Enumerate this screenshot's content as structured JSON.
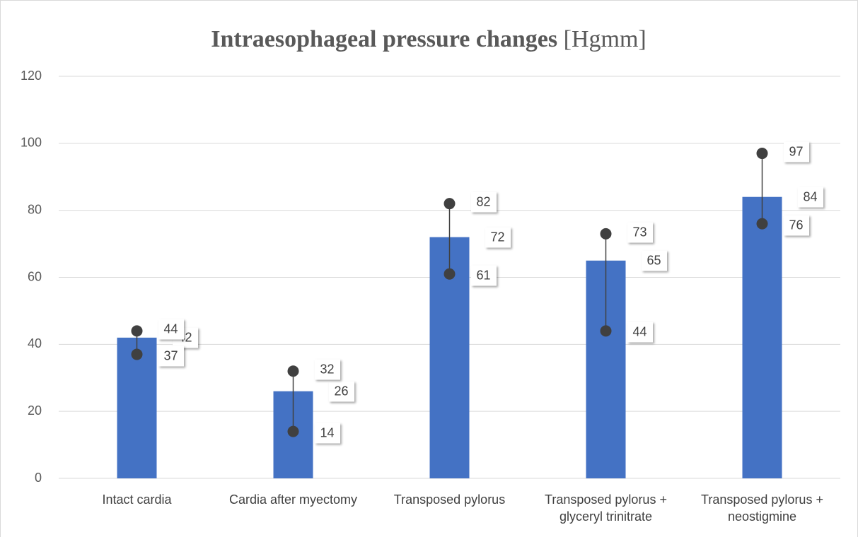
{
  "chart_data": {
    "type": "bar",
    "title": "Intraesophageal pressure changes",
    "title_unit": "[Hgmm]",
    "categories": [
      "Intact cardia",
      "Cardia after myectomy",
      "Transposed pylorus",
      "Transposed pylorus + glyceryl trinitrate",
      "Transposed pylorus + neostigmine"
    ],
    "values": [
      42,
      26,
      72,
      65,
      84
    ],
    "color": "#4472c4",
    "high": [
      44,
      32,
      82,
      73,
      97
    ],
    "low": [
      37,
      14,
      61,
      44,
      76
    ],
    "marker_color": "#404040",
    "ylim": [
      0,
      120
    ],
    "yticks": [
      0,
      20,
      40,
      60,
      80,
      100,
      120
    ],
    "grid": true
  }
}
